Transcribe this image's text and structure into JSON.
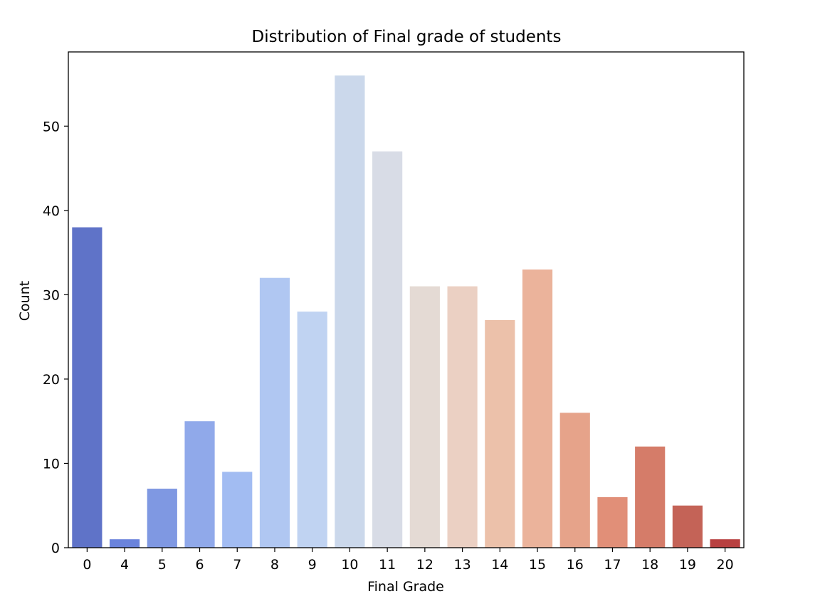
{
  "chart_data": {
    "type": "bar",
    "title": "Distribution of Final grade of students",
    "xlabel": "Final Grade",
    "ylabel": "Count",
    "categories": [
      "0",
      "4",
      "5",
      "6",
      "7",
      "8",
      "9",
      "10",
      "11",
      "12",
      "13",
      "14",
      "15",
      "16",
      "17",
      "18",
      "19",
      "20"
    ],
    "values": [
      38,
      1,
      7,
      15,
      9,
      32,
      28,
      56,
      47,
      31,
      31,
      27,
      33,
      16,
      6,
      12,
      5,
      1
    ],
    "colors": [
      "#5f73c8",
      "#6a83dc",
      "#7f98e2",
      "#90a9ea",
      "#a2bcf2",
      "#b0c7f2",
      "#c0d3f2",
      "#cbd8eb",
      "#d8dce6",
      "#e4dad4",
      "#ebd0c3",
      "#ecc1aa",
      "#ebb39b",
      "#e6a38a",
      "#e18f78",
      "#d57c69",
      "#c46357",
      "#b84040"
    ],
    "yticks": [
      0,
      10,
      20,
      30,
      40,
      50
    ],
    "ylim": [
      0,
      58.8
    ],
    "grid": false,
    "legend": false
  }
}
